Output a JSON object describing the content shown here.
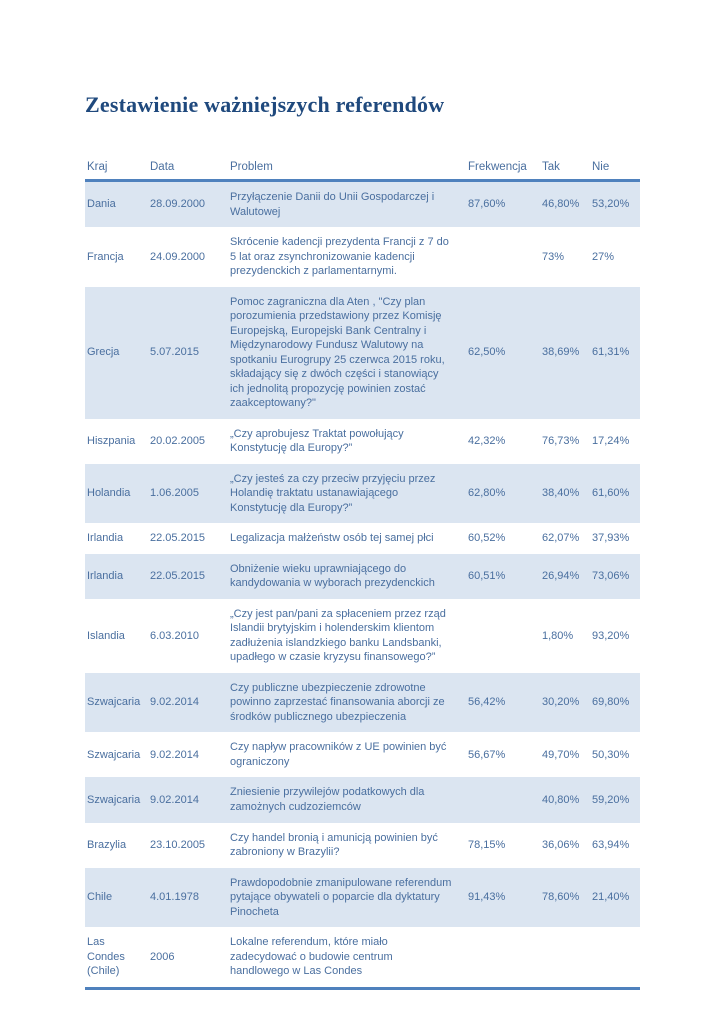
{
  "page": {
    "title": "Zestawienie ważniejszych referendów"
  },
  "colors": {
    "title_text": "#1f497d",
    "table_text": "#4a6f9f",
    "row_stripe": "#dbe5f1",
    "thick_border": "#4f81bd",
    "page_background": "#ffffff"
  },
  "table": {
    "columns": [
      "Kraj",
      "Data",
      "Problem",
      "Frekwencja",
      "Tak",
      "Nie"
    ],
    "rows": [
      [
        "Dania",
        "28.09.2000",
        "Przyłączenie Danii do Unii Gospodarczej i Walutowej",
        "87,60%",
        "46,80%",
        "53,20%"
      ],
      [
        "Francja",
        "24.09.2000",
        "Skrócenie kadencji prezydenta Francji z 7 do 5 lat oraz zsynchronizowanie kadencji prezydenckich z parlamentarnymi.",
        "",
        "73%",
        "27%"
      ],
      [
        "Grecja",
        "5.07.2015",
        "Pomoc zagraniczna dla Aten , \"Czy plan porozumienia przedstawiony przez Komisję Europejską, Europejski Bank Centralny i Międzynarodowy Fundusz Walutowy na spotkaniu Eurogrupy 25 czerwca 2015 roku, składający się z dwóch części i stanowiący ich jednolitą propozycję powinien zostać zaakceptowany?\"",
        "62,50%",
        "38,69%",
        "61,31%"
      ],
      [
        "Hiszpania",
        "20.02.2005",
        "„Czy aprobujesz Traktat powołujący Konstytucję dla Europy?”",
        "42,32%",
        "76,73%",
        "17,24%"
      ],
      [
        "Holandia",
        "1.06.2005",
        "„Czy jesteś za czy przeciw przyjęciu przez Holandię traktatu ustanawiającego Konstytucję dla Europy?”",
        "62,80%",
        "38,40%",
        "61,60%"
      ],
      [
        "Irlandia",
        "22.05.2015",
        "Legalizacja  małżeństw osób tej samej płci",
        "60,52%",
        "62,07%",
        "37,93%"
      ],
      [
        "Irlandia",
        "22.05.2015",
        "Obniżenie wieku uprawniającego do kandydowania w wyborach prezydenckich",
        "60,51%",
        "26,94%",
        "73,06%"
      ],
      [
        "Islandia",
        "6.03.2010",
        "„Czy jest pan/pani za spłaceniem przez rząd Islandii brytyjskim i holenderskim klientom zadłużenia islandzkiego banku Landsbanki, upadłego w czasie kryzysu finansowego?”",
        "",
        "1,80%",
        "93,20%"
      ],
      [
        "Szwajcaria",
        "9.02.2014",
        "Czy publiczne ubezpieczenie zdrowotne powinno zaprzestać finansowania aborcji ze środków publicznego ubezpieczenia",
        "56,42%",
        "30,20%",
        "69,80%"
      ],
      [
        "Szwajcaria",
        "9.02.2014",
        "Czy napływ pracowników z UE powinien być ograniczony",
        "56,67%",
        "49,70%",
        "50,30%"
      ],
      [
        "Szwajcaria",
        "9.02.2014",
        "Zniesienie przywilejów podatkowych dla zamożnych cudzoziemców",
        "",
        "40,80%",
        "59,20%"
      ],
      [
        "Brazylia",
        "23.10.2005",
        "Czy handel bronią i amunicją powinien być zabroniony w Brazylii?",
        "78,15%",
        "36,06%",
        "63,94%"
      ],
      [
        "Chile",
        "4.01.1978",
        "Prawdopodobnie zmanipulowane referendum pytające obywateli o poparcie dla dyktatury Pinocheta",
        "91,43%",
        "78,60%",
        "21,40%"
      ],
      [
        "Las Condes (Chile)",
        "2006",
        "Lokalne referendum, które miało zadecydować o budowie centrum handlowego w Las Condes",
        "",
        "",
        ""
      ]
    ]
  }
}
